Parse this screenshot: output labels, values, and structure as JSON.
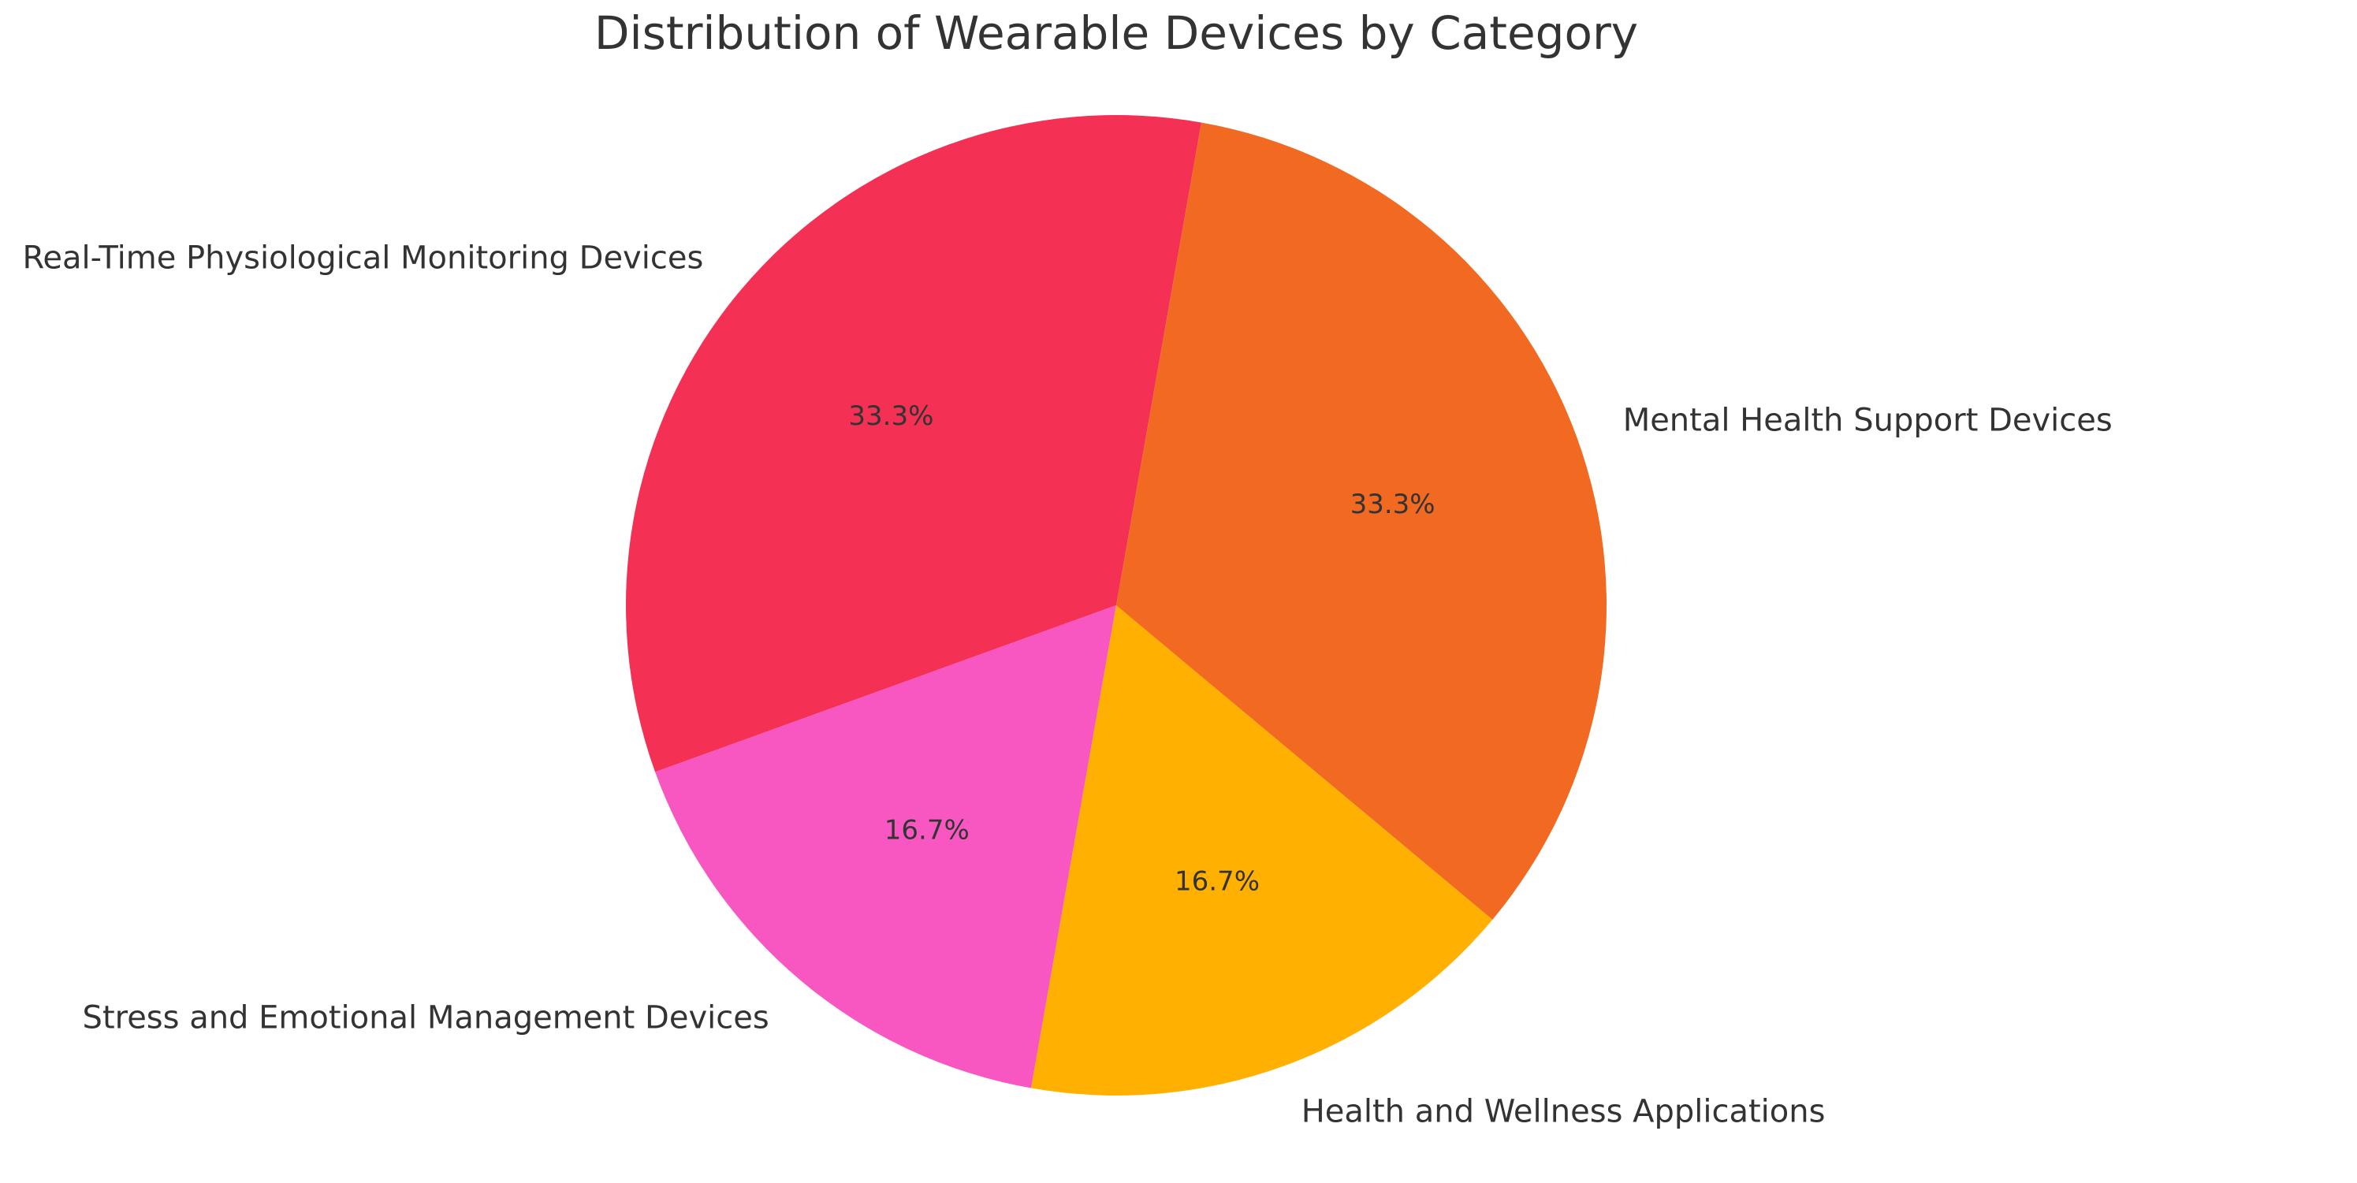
{
  "chart_data": {
    "type": "pie",
    "title": "Distribution of Wearable Devices by Category",
    "start_angle_deg": 80,
    "direction": "counterclockwise",
    "slices": [
      {
        "label": "Real-Time Physiological Monitoring Devices",
        "value": 33.3,
        "pct_label": "33.3%",
        "color": "#F43055"
      },
      {
        "label": "Stress and Emotional Management Devices",
        "value": 16.7,
        "pct_label": "16.7%",
        "color": "#F857C1"
      },
      {
        "label": "Health and Wellness Applications",
        "value": 16.7,
        "pct_label": "16.7%",
        "color": "#FFB000"
      },
      {
        "label": "Mental Health Support Devices",
        "value": 33.3,
        "pct_label": "33.3%",
        "color": "#F26A22"
      }
    ]
  }
}
